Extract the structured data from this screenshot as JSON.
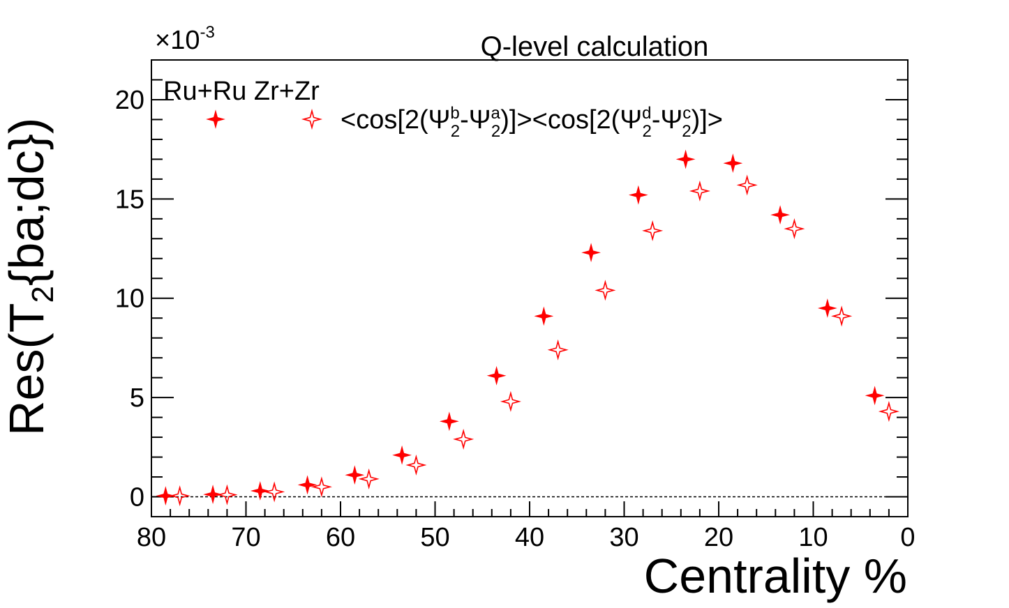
{
  "chart_data": {
    "type": "scatter",
    "title": "Q-level calculation",
    "xlabel": "Centrality %",
    "ylabel": {
      "base": "Res(T",
      "sub": "2",
      "rest": "{ba;dc})"
    },
    "y_multiplier": "×10",
    "y_multiplier_exp": "-3",
    "xlim": [
      80,
      0
    ],
    "ylim": [
      -1,
      22
    ],
    "x_reversed": true,
    "xticks": [
      80,
      70,
      60,
      50,
      40,
      30,
      20,
      10,
      0
    ],
    "yticks": [
      0,
      5,
      10,
      15,
      20
    ],
    "zero_line": true,
    "legend": {
      "header": "Ru+Ru Zr+Zr",
      "placement": "top-left",
      "entry": {
        "p1": "<cos[2(Ψ",
        "sup1": "b",
        "sub1": "2",
        "p2": "-Ψ",
        "sup2": "a",
        "sub2": "2",
        "p3": ")]><cos[2(Ψ",
        "sup3": "d",
        "sub3": "2",
        "p4": "-Ψ",
        "sup4": "c",
        "sub4": "2",
        "p5": ")]>"
      }
    },
    "series": [
      {
        "marker": "filled-star",
        "color": "#ff0000",
        "x": [
          78.5,
          73.5,
          68.5,
          63.5,
          58.5,
          53.5,
          48.5,
          43.5,
          38.5,
          33.5,
          28.5,
          23.5,
          18.5,
          13.5,
          8.5,
          3.5
        ],
        "y": [
          0.05,
          0.12,
          0.3,
          0.6,
          1.1,
          2.1,
          3.8,
          6.1,
          9.1,
          12.3,
          15.2,
          17.0,
          16.8,
          14.2,
          9.5,
          5.1
        ]
      },
      {
        "marker": "open-star",
        "color": "#ff0000",
        "x": [
          77.0,
          72.0,
          67.0,
          62.0,
          57.0,
          52.0,
          47.0,
          42.0,
          37.0,
          32.0,
          27.0,
          22.0,
          17.0,
          12.0,
          7.0,
          2.0
        ],
        "y": [
          0.05,
          0.1,
          0.25,
          0.5,
          0.9,
          1.6,
          2.9,
          4.8,
          7.4,
          10.4,
          13.4,
          15.4,
          15.7,
          13.5,
          9.1,
          4.3
        ]
      }
    ]
  }
}
